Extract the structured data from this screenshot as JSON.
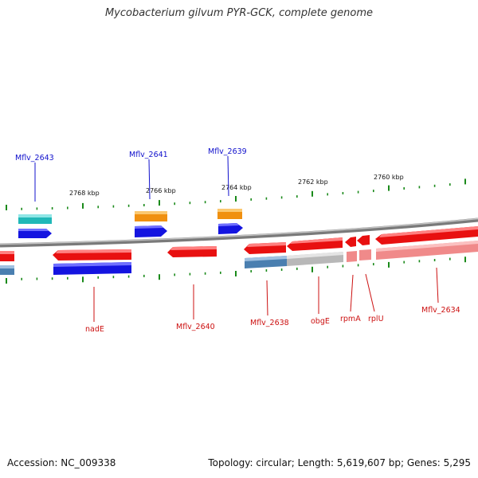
{
  "title": "Mycobacterium gilvum PYR-GCK, complete genome",
  "footer": {
    "accession": "Accession: NC_009338",
    "topology": "Topology: circular; Length: 5,619,607 bp; Genes: 5,295"
  },
  "scale_labels": [
    {
      "text": "2768 kbp",
      "kbp": 2768
    },
    {
      "text": "2766 kbp",
      "kbp": 2766
    },
    {
      "text": "2764 kbp",
      "kbp": 2764
    },
    {
      "text": "2762 kbp",
      "kbp": 2762
    },
    {
      "text": "2760 kbp",
      "kbp": 2760
    }
  ],
  "gene_labels_forward": [
    "Mflv_2643",
    "Mflv_2641",
    "Mflv_2639"
  ],
  "gene_labels_reverse": [
    "nadE",
    "Mflv_2640",
    "Mflv_2638",
    "obgE",
    "rpmA",
    "rplU",
    "Mflv_2634"
  ],
  "colors": {
    "backbone": "#8a8a8a",
    "cds_forward": "#1414e0",
    "cds_reverse": "#e81010",
    "cyan_feature": "#20b8b8",
    "orange_feature": "#f09010",
    "steelblue_feature": "#4a7fb0",
    "gray_feature": "#b8b8b8",
    "pink_feature": "#f08a8a",
    "ticks": "#1a8a1a"
  }
}
